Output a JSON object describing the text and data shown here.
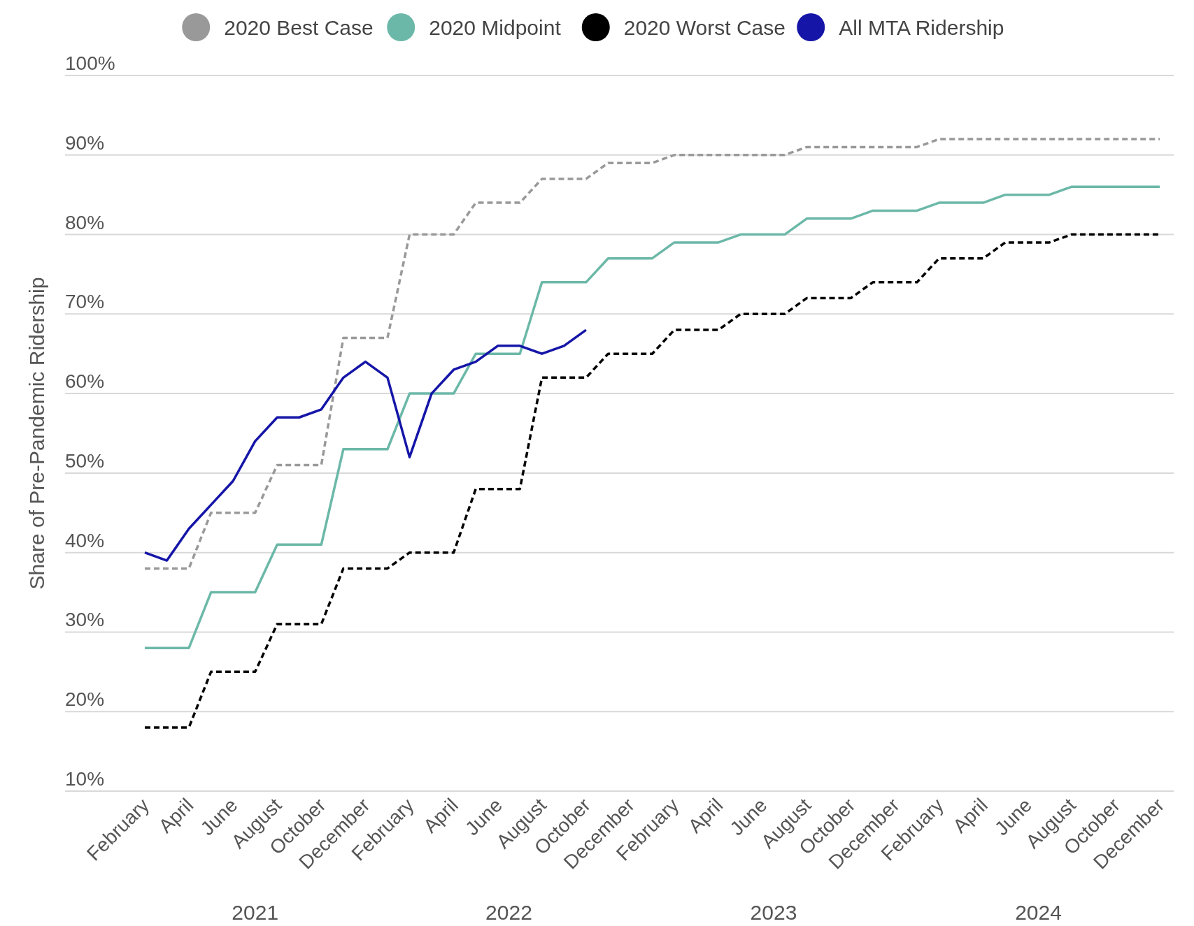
{
  "chart_data": {
    "type": "line",
    "ylabel": "Share of Pre-Pandemic Ridership",
    "categories": [
      "February",
      null,
      "April",
      null,
      "June",
      null,
      "August",
      null,
      "October",
      null,
      "December",
      null,
      "February",
      null,
      "April",
      null,
      "June",
      null,
      "August",
      null,
      "October",
      null,
      "December",
      null,
      "February",
      null,
      "April",
      null,
      "June",
      null,
      "August",
      null,
      "October",
      null,
      "December",
      null,
      "February",
      null,
      "April",
      null,
      "June",
      null,
      "August",
      null,
      "October",
      null,
      "December"
    ],
    "series": [
      {
        "name": "2020 Best Case",
        "color": "#999999",
        "line_style": "dashed",
        "values": [
          38,
          38,
          38,
          45,
          45,
          45,
          51,
          51,
          51,
          67,
          67,
          67,
          80,
          80,
          80,
          84,
          84,
          84,
          87,
          87,
          87,
          89,
          89,
          89,
          90,
          90,
          90,
          90,
          90,
          90,
          91,
          91,
          91,
          91,
          91,
          91,
          92,
          92,
          92,
          92,
          92,
          92,
          92,
          92,
          92,
          92,
          92
        ]
      },
      {
        "name": "2020 Midpoint",
        "color": "#6cb8a8",
        "line_style": "solid",
        "values": [
          28,
          28,
          28,
          35,
          35,
          35,
          41,
          41,
          41,
          53,
          53,
          53,
          60,
          60,
          60,
          65,
          65,
          65,
          74,
          74,
          74,
          77,
          77,
          77,
          79,
          79,
          79,
          80,
          80,
          80,
          82,
          82,
          82,
          83,
          83,
          83,
          84,
          84,
          84,
          85,
          85,
          85,
          86,
          86,
          86,
          86,
          86
        ]
      },
      {
        "name": "2020 Worst Case",
        "color": "#000000",
        "line_style": "dashed",
        "values": [
          18,
          18,
          18,
          25,
          25,
          25,
          31,
          31,
          31,
          38,
          38,
          38,
          40,
          40,
          40,
          48,
          48,
          48,
          62,
          62,
          62,
          65,
          65,
          65,
          68,
          68,
          68,
          70,
          70,
          70,
          72,
          72,
          72,
          74,
          74,
          74,
          77,
          77,
          77,
          79,
          79,
          79,
          80,
          80,
          80,
          80,
          80
        ]
      },
      {
        "name": "All MTA Ridership",
        "color": "#1515a8",
        "line_style": "solid",
        "values": [
          40,
          39,
          43,
          46,
          49,
          54,
          57,
          57,
          58,
          62,
          64,
          62,
          52,
          60,
          63,
          64,
          66,
          66,
          65,
          66,
          68,
          null,
          null,
          null,
          null,
          null,
          null,
          null,
          null,
          null,
          null,
          null,
          null,
          null,
          null,
          null,
          null,
          null,
          null,
          null,
          null,
          null,
          null,
          null,
          null,
          null,
          null
        ]
      }
    ],
    "ylim": [
      10,
      100
    ],
    "yticks": [
      {
        "value": 10,
        "label": "10%"
      },
      {
        "value": 20,
        "label": "20%"
      },
      {
        "value": 30,
        "label": "30%"
      },
      {
        "value": 40,
        "label": "40%"
      },
      {
        "value": 50,
        "label": "50%"
      },
      {
        "value": 60,
        "label": "60%"
      },
      {
        "value": 70,
        "label": "70%"
      },
      {
        "value": 80,
        "label": "80%"
      },
      {
        "value": 90,
        "label": "90%"
      },
      {
        "value": 100,
        "label": "100%"
      }
    ],
    "annotations": [
      "2021",
      "2022",
      "2023",
      "2024"
    ],
    "grid": "y",
    "legend": "top",
    "marker": "none"
  }
}
